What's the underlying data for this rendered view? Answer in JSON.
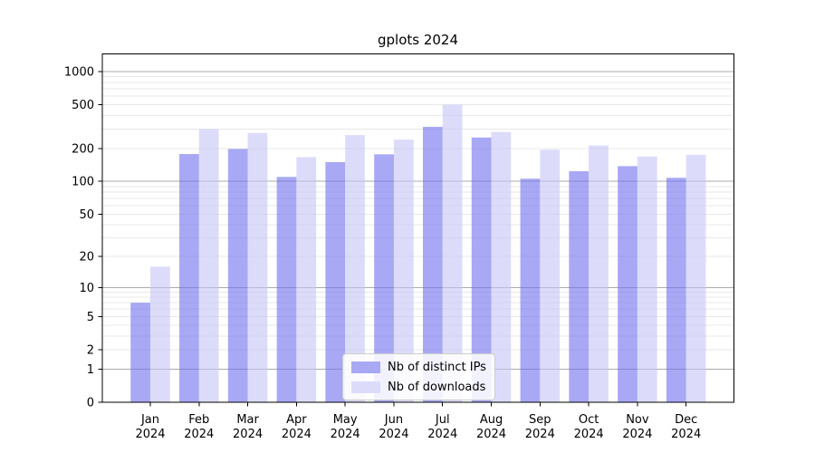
{
  "chart_data": {
    "type": "bar",
    "title": "gplots 2024",
    "categories": [
      "Jan 2024",
      "Feb 2024",
      "Mar 2024",
      "Apr 2024",
      "May 2024",
      "Jun 2024",
      "Jul 2024",
      "Aug 2024",
      "Sep 2024",
      "Oct 2024",
      "Nov 2024",
      "Dec 2024"
    ],
    "series": [
      {
        "name": "Nb of distinct IPs",
        "color": "#a8a8f5",
        "values": [
          7,
          178,
          198,
          110,
          150,
          177,
          315,
          252,
          106,
          124,
          138,
          108
        ]
      },
      {
        "name": "Nb of downloads",
        "color": "#dcdcfa",
        "values": [
          16,
          300,
          277,
          167,
          265,
          241,
          500,
          283,
          195,
          213,
          169,
          175
        ]
      }
    ],
    "y_axis": {
      "scale": "log1p",
      "ticks": [
        0,
        1,
        2,
        5,
        10,
        20,
        50,
        100,
        200,
        500,
        1000
      ],
      "range": [
        0,
        1450
      ]
    },
    "x_axis": {
      "tick_year": "2024"
    },
    "grid": {
      "major_color": "#ababab",
      "minor_color": "#e8e8e8",
      "major_at": [
        1,
        10,
        100,
        1000
      ]
    },
    "legend": {
      "position": "inside-bottom-center"
    }
  }
}
